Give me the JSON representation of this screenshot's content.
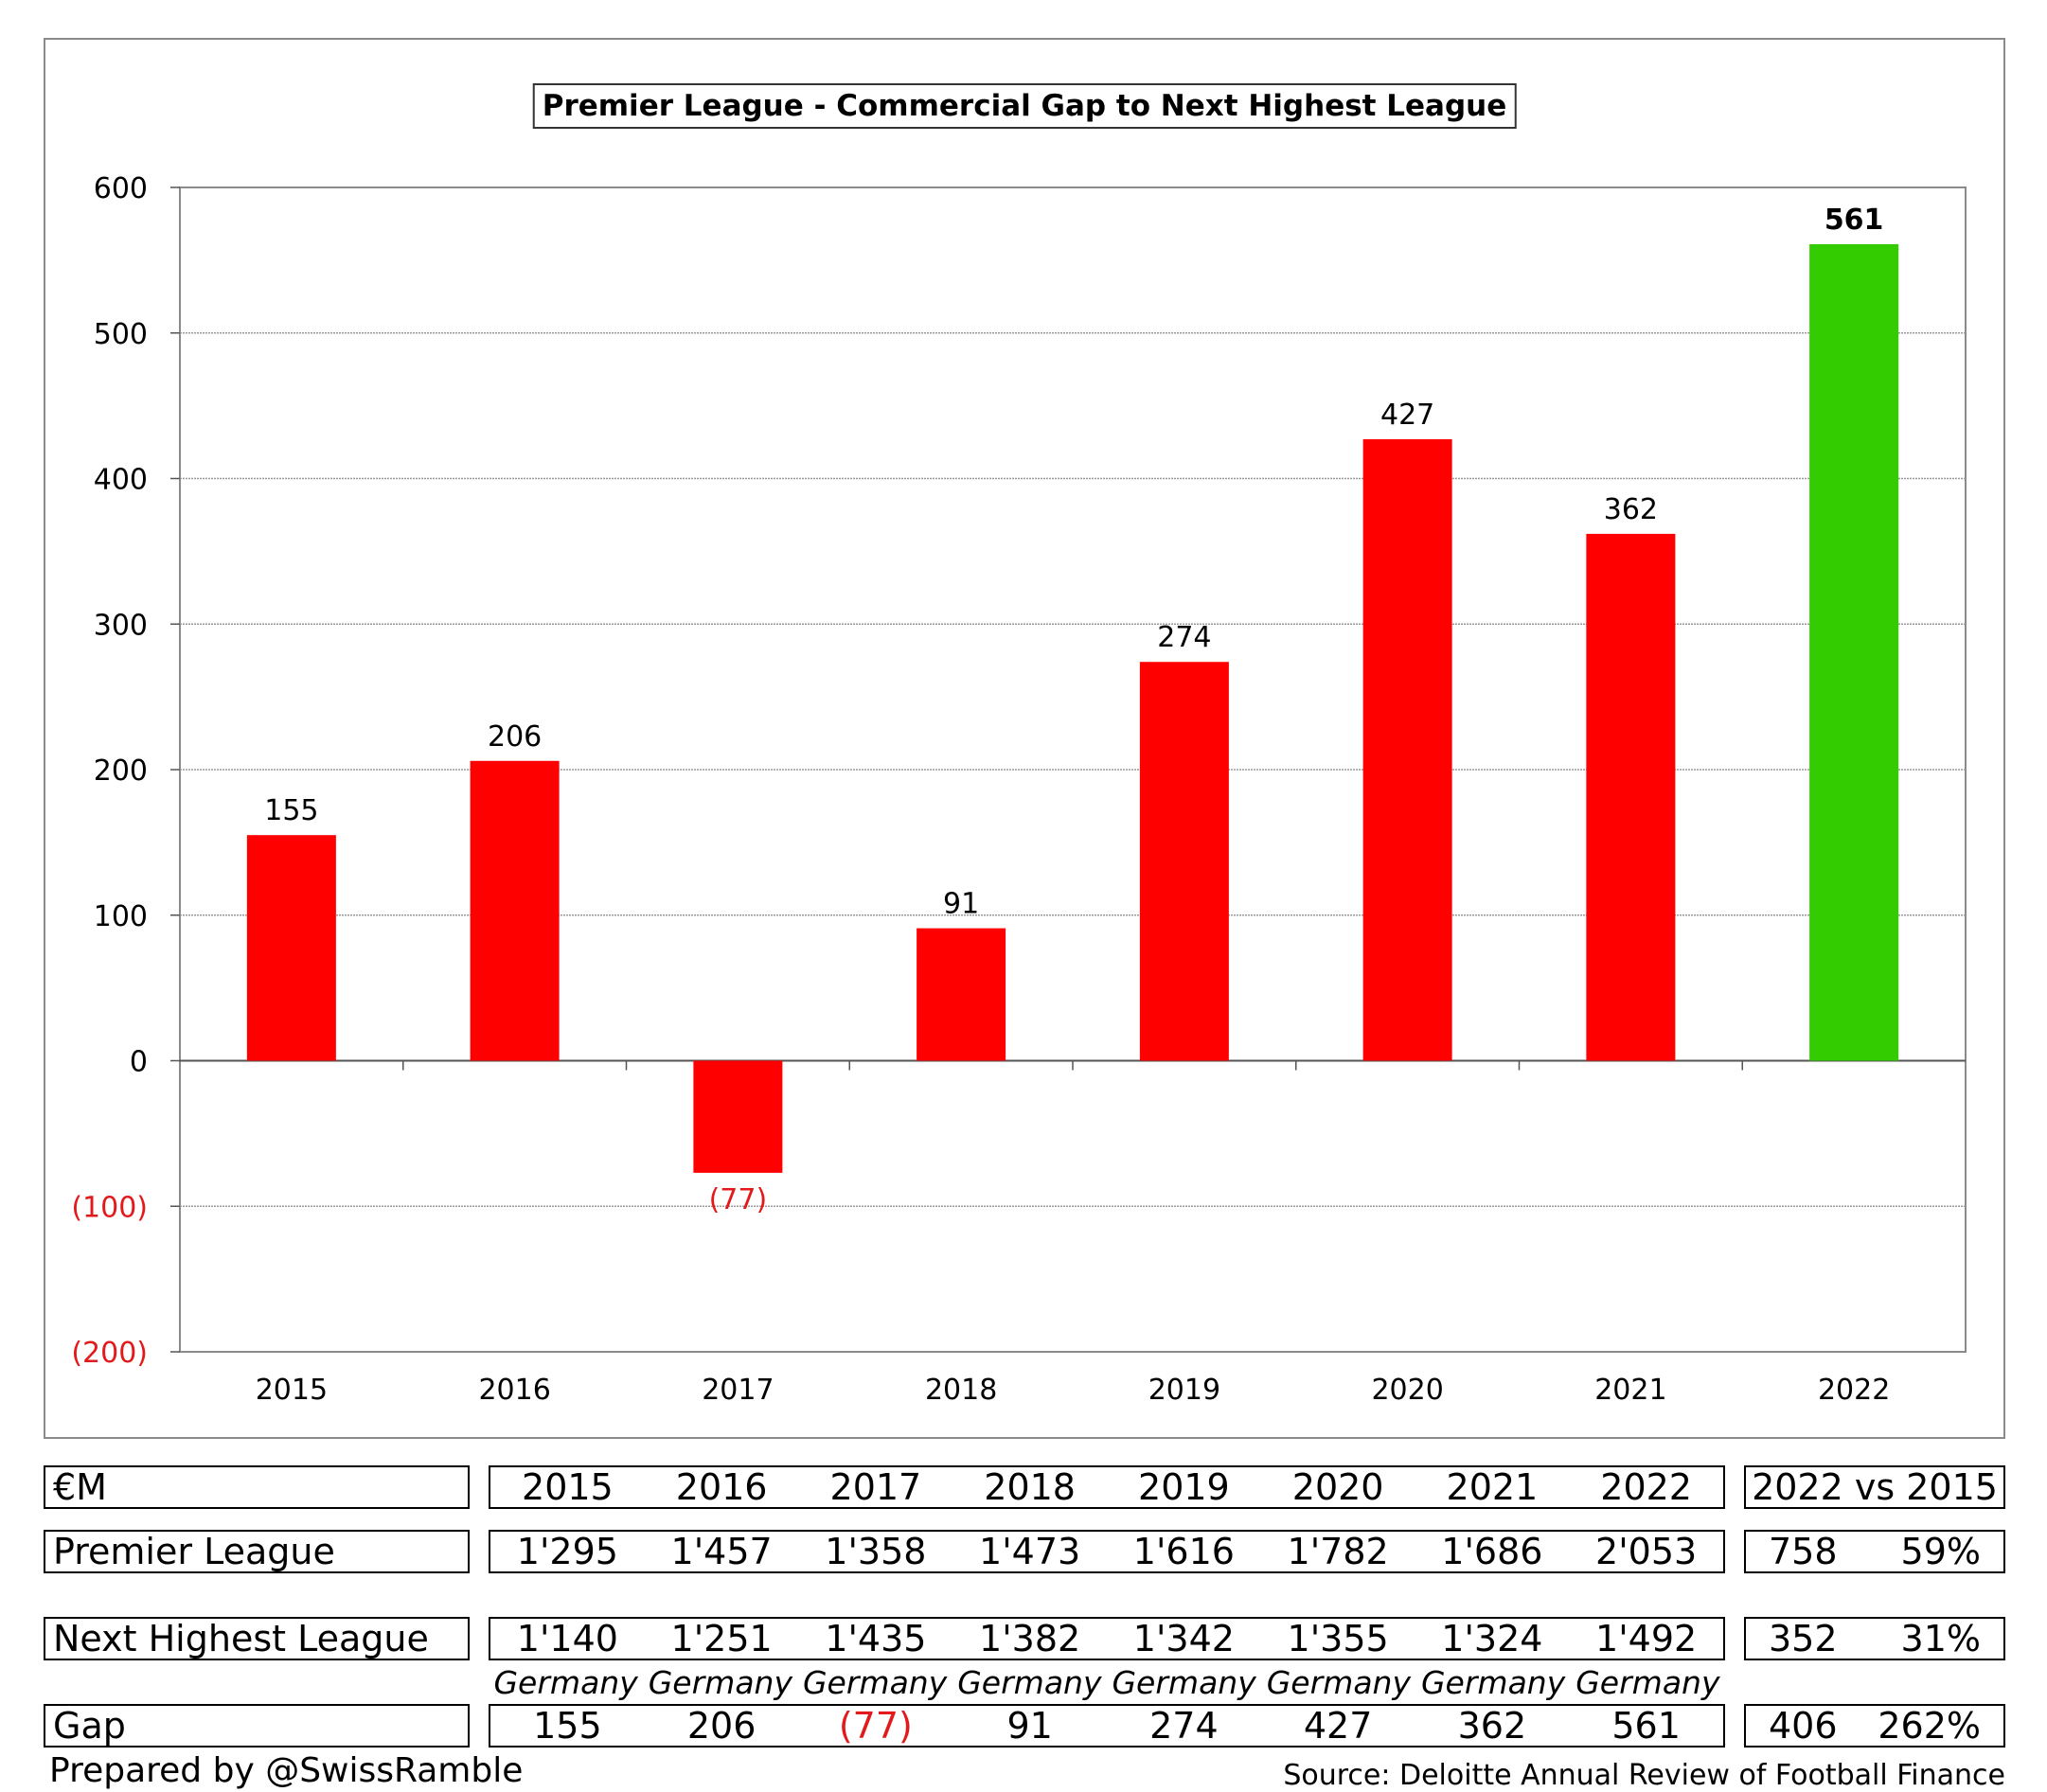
{
  "chart_data": {
    "type": "bar",
    "title": "Premier League - Commercial Gap to Next Highest League",
    "categories": [
      "2015",
      "2016",
      "2017",
      "2018",
      "2019",
      "2020",
      "2021",
      "2022"
    ],
    "values": [
      155,
      206,
      -77,
      91,
      274,
      427,
      362,
      561
    ],
    "data_labels": [
      "155",
      "206",
      "(77)",
      "91",
      "274",
      "427",
      "362",
      "561"
    ],
    "ylim": [
      -200,
      600
    ],
    "yticks": [
      600,
      500,
      400,
      300,
      200,
      100,
      0,
      -100,
      -200
    ],
    "ytick_labels": [
      "600",
      "500",
      "400",
      "300",
      "200",
      "100",
      "0",
      "(100)",
      "(200)"
    ],
    "grid": true,
    "colors": {
      "bar": "#ff0000",
      "highlight": "#33cc00",
      "negative_text": "#e31a1c",
      "grid": "#9a9a9a"
    },
    "highlight_index": 7
  },
  "table": {
    "header": {
      "label": "€M",
      "years": [
        "2015",
        "2016",
        "2017",
        "2018",
        "2019",
        "2020",
        "2021",
        "2022"
      ],
      "comparison": "2022 vs 2015"
    },
    "rows": [
      {
        "label": "Premier League",
        "values": [
          "1'295",
          "1'457",
          "1'358",
          "1'473",
          "1'616",
          "1'782",
          "1'686",
          "2'053"
        ],
        "change": "758",
        "pct": "59%"
      },
      {
        "label": "Next Highest League",
        "values": [
          "1'140",
          "1'251",
          "1'435",
          "1'382",
          "1'342",
          "1'355",
          "1'324",
          "1'492"
        ],
        "change": "352",
        "pct": "31%"
      },
      {
        "label": "Gap",
        "values": [
          "155",
          "206",
          "(77)",
          "91",
          "274",
          "427",
          "362",
          "561"
        ],
        "change": "406",
        "pct": "262%"
      }
    ],
    "league_names": [
      "Germany",
      "Germany",
      "Germany",
      "Germany",
      "Germany",
      "Germany",
      "Germany",
      "Germany"
    ]
  },
  "footer": {
    "prepared_by": "Prepared by @SwissRamble",
    "source": "Source: Deloitte Annual Review of Football Finance"
  }
}
